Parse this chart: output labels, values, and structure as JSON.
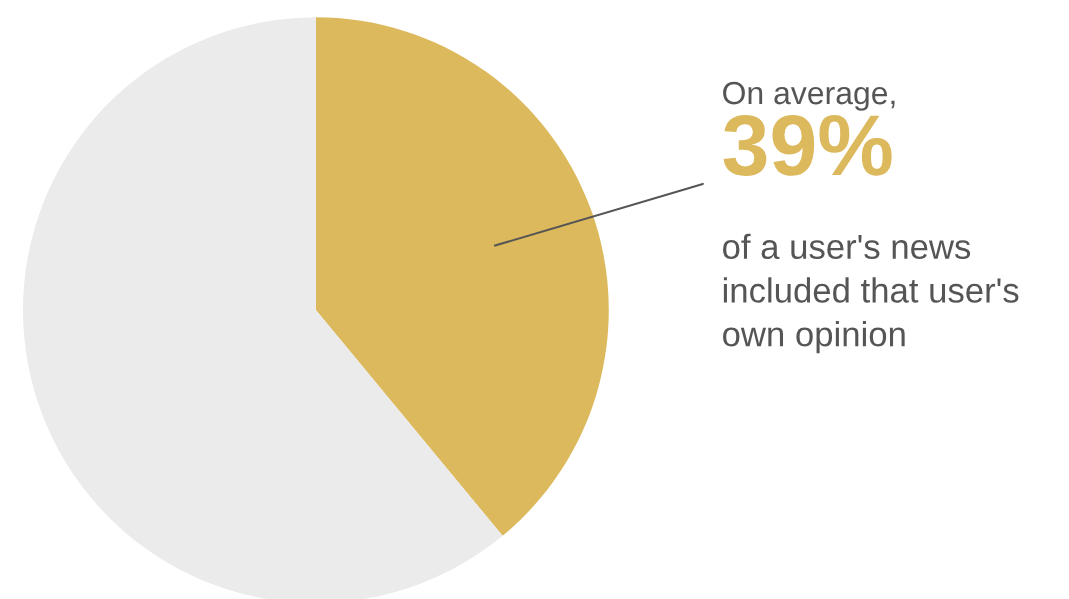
{
  "chart_data": {
    "type": "pie",
    "categories": [
      null,
      null
    ],
    "values": [
      39,
      61
    ],
    "colors": [
      "#dcb95c",
      "#ebebeb"
    ],
    "value_labels": [
      "39%",
      null
    ],
    "annotations": [
      "On average,",
      "of a user's news included that user's own opinion"
    ]
  }
}
